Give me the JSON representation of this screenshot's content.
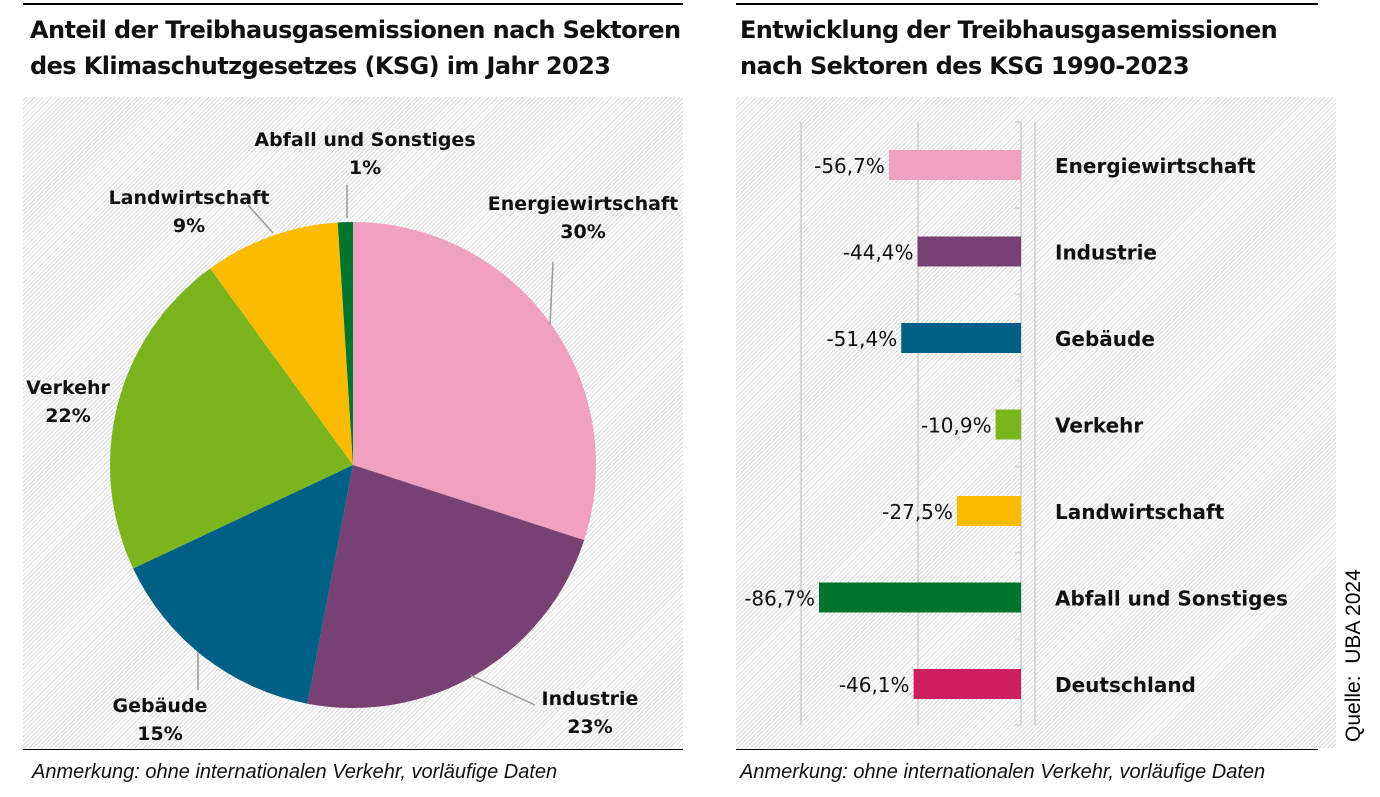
{
  "left": {
    "title_line1": "Anteil der Treibhausgasemissionen  nach Sektoren",
    "title_line2": "des Klimaschutzgesetzes  (KSG) im Jahr 2023",
    "note": "Anmerkung: ohne internationalen Verkehr, vorläufige Daten"
  },
  "right": {
    "title_line1": "Entwicklung der Treibhausgasemissionen",
    "title_line2": "nach Sektoren des KSG 1990-2023",
    "note": "Anmerkung: ohne internationalen Verkehr, vorläufige Daten"
  },
  "source": "Quelle:  UBA 2024",
  "chart_data": [
    {
      "type": "pie",
      "title": "Anteil der Treibhausgasemissionen nach Sektoren des Klimaschutzgesetzes (KSG) im Jahr 2023",
      "unit": "%",
      "slices": [
        {
          "label": "Energiewirtschaft",
          "value": 30,
          "display": "30%",
          "color": "#f0a1bf"
        },
        {
          "label": "Industrie",
          "value": 23,
          "display": "23%",
          "color": "#774174"
        },
        {
          "label": "Gebäude",
          "value": 15,
          "display": "15%",
          "color": "#005f85"
        },
        {
          "label": "Verkehr",
          "value": 22,
          "display": "22%",
          "color": "#7ab51d"
        },
        {
          "label": "Landwirtschaft",
          "value": 9,
          "display": "9%",
          "color": "#fbbb00"
        },
        {
          "label": "Abfall und Sonstiges",
          "value": 1,
          "display": "1%",
          "color": "#00752b"
        }
      ]
    },
    {
      "type": "bar",
      "orientation": "horizontal",
      "title": "Entwicklung der Treibhausgasemissionen nach Sektoren des KSG 1990-2023",
      "unit": "%",
      "categories": [
        "Energiewirtschaft",
        "Industrie",
        "Gebäude",
        "Verkehr",
        "Landwirtschaft",
        "Abfall und Sonstiges",
        "Deutschland"
      ],
      "values": [
        -56.7,
        -44.4,
        -51.4,
        -10.9,
        -27.5,
        -86.7,
        -46.1
      ],
      "labels": [
        "-56,7%",
        "-44,4%",
        "-51,4%",
        "-10,9%",
        "-27,5%",
        "-86,7%",
        "-46,1%"
      ],
      "colors": [
        "#f0a1bf",
        "#774174",
        "#005f85",
        "#7ab51d",
        "#fbbb00",
        "#00752b",
        "#ce1f5e"
      ],
      "grid": true
    }
  ]
}
